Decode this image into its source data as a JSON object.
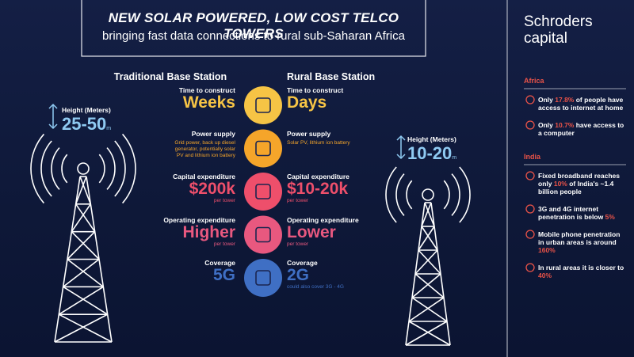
{
  "header": {
    "title": "NEW SOLAR POWERED, LOW COST TELCO TOWERS",
    "subtitle": "bringing fast data connections to rural sub-Saharan Africa"
  },
  "brand": {
    "name": "Schroders",
    "sub": "capital"
  },
  "traditional": {
    "title": "Traditional Base Station",
    "height_label": "Height (Meters)",
    "height": "25-50",
    "height_unit": "m"
  },
  "rural": {
    "title": "Rural Base Station",
    "height_label": "Height (Meters)",
    "height": "10-20",
    "height_unit": "m"
  },
  "rows": [
    {
      "color": "#f6c445",
      "traditional": {
        "label": "Time to construct",
        "value": "Weeks"
      },
      "rural": {
        "label": "Time to construct",
        "value": "Days"
      }
    },
    {
      "color": "#f5a52a",
      "traditional": {
        "label": "Power supply",
        "note": "Grid power, back up diesel generator, potentially solar PV and lithium ion battery"
      },
      "rural": {
        "label": "Power supply",
        "note": "Solar PV, lithium ion battery"
      }
    },
    {
      "color": "#ee4f6b",
      "traditional": {
        "label": "Capital expenditure",
        "value": "$200k",
        "sub": "per tower"
      },
      "rural": {
        "label": "Capital expenditure",
        "value": "$10-20k",
        "sub": "per tower"
      }
    },
    {
      "color": "#e8587f",
      "traditional": {
        "label": "Operating expenditure",
        "value": "Higher",
        "sub": "per tower"
      },
      "rural": {
        "label": "Operating expenditure",
        "value": "Lower",
        "sub": "per tower"
      }
    },
    {
      "color": "#3f6fc4",
      "traditional": {
        "label": "Coverage",
        "value": "5G"
      },
      "rural": {
        "label": "Coverage",
        "value": "2G",
        "sub": "could also cover 3G - 4G"
      }
    }
  ],
  "sidebar": {
    "sections": [
      {
        "title": "Africa",
        "items": [
          {
            "before": "Only ",
            "highlight": "17.8%",
            "after": " of people have access to internet at home"
          },
          {
            "before": "Only ",
            "highlight": "10.7%",
            "after": " have access to a computer"
          }
        ]
      },
      {
        "title": "India",
        "items": [
          {
            "before": "Fixed broadband reaches only ",
            "highlight": "10%",
            "after": " of India's ~1.4 billion people"
          },
          {
            "before": "3G and 4G internet penetration is below ",
            "highlight": "5%"
          },
          {
            "before": "Mobile phone penetration in urban areas is around ",
            "highlight": "160%"
          },
          {
            "before": "In rural areas it is closer to ",
            "highlight": "40%"
          }
        ]
      }
    ]
  }
}
